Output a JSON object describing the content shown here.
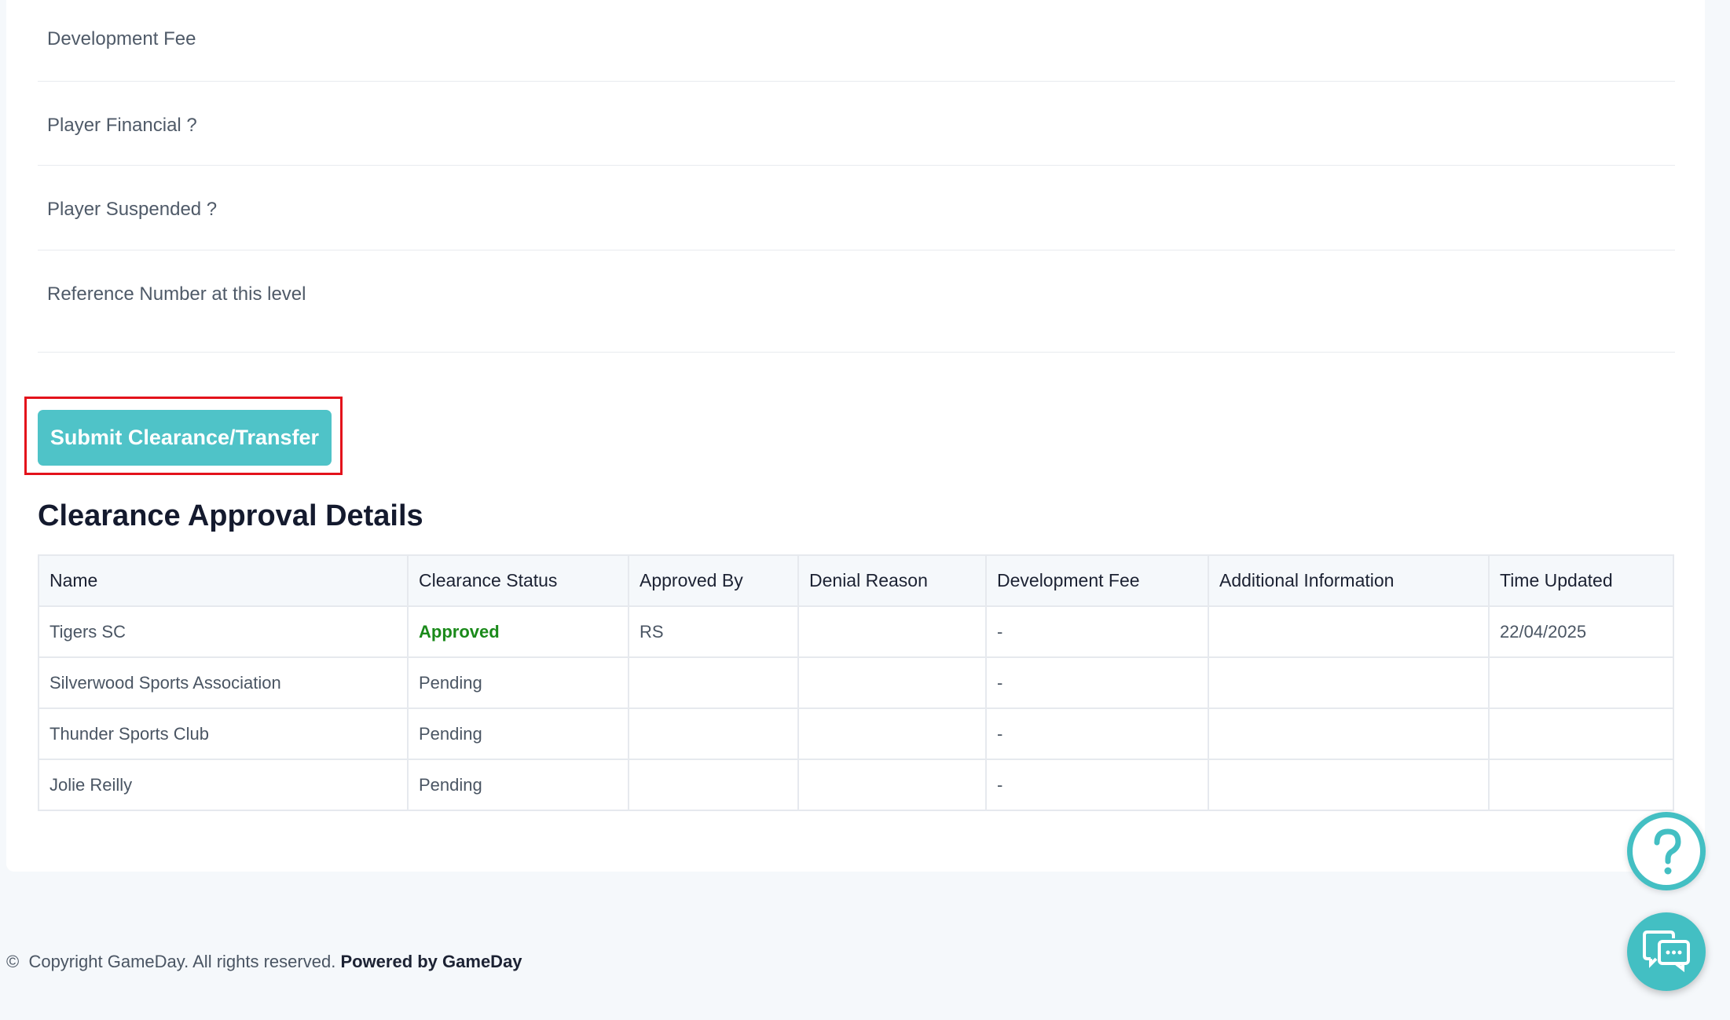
{
  "form": {
    "fields": [
      {
        "label": "Development Fee"
      },
      {
        "label": "Player Financial ?"
      },
      {
        "label": "Player Suspended ?"
      },
      {
        "label": "Reference Number at this level"
      }
    ]
  },
  "submit_label": "Submit Clearance/Transfer",
  "section_title": "Clearance Approval Details",
  "table": {
    "headers": [
      "Name",
      "Clearance Status",
      "Approved By",
      "Denial Reason",
      "Development Fee",
      "Additional Information",
      "Time Updated"
    ],
    "rows": [
      [
        "Tigers SC",
        "Approved",
        "RS",
        "",
        "-",
        "",
        "22/04/2025"
      ],
      [
        "Silverwood Sports Association",
        "Pending",
        "",
        "",
        "-",
        "",
        ""
      ],
      [
        "Thunder Sports Club",
        "Pending",
        "",
        "",
        "-",
        "",
        ""
      ],
      [
        "Jolie Reilly",
        "Pending",
        "",
        "",
        "-",
        "",
        ""
      ]
    ]
  },
  "footer": {
    "copyright": "Copyright GameDay. All rights reserved.",
    "powered": "Powered by GameDay"
  },
  "colors": {
    "accent": "#4fc3c8",
    "approved": "#1a8a1a",
    "highlight": "#e3121b"
  },
  "icons": {
    "help": "question-circle-icon",
    "chat": "chat-bubbles-icon",
    "copyright": "copyright-icon"
  }
}
